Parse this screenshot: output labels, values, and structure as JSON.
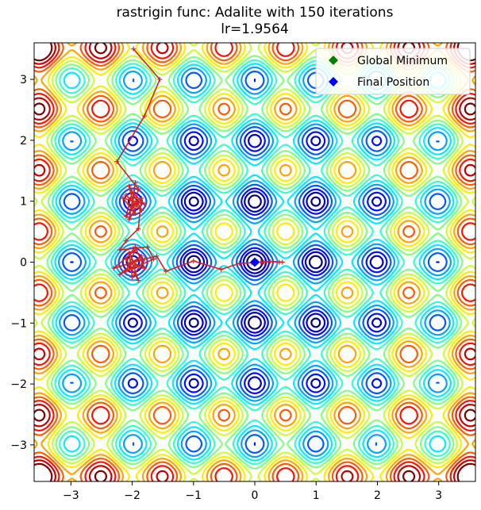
{
  "chart_data": {
    "type": "contour",
    "title": "rastrigin func: Adalite with 150 iterations",
    "subtitle": "lr=1.9564",
    "xlabel": "",
    "ylabel": "",
    "xlim": [
      -3.6,
      3.6
    ],
    "ylim": [
      -3.6,
      3.6
    ],
    "x_ticks": [
      -3,
      -2,
      -1,
      0,
      1,
      2,
      3
    ],
    "y_ticks": [
      -3,
      -2,
      -1,
      0,
      1,
      2,
      3
    ],
    "x_tick_labels": [
      "−3",
      "−2",
      "−1",
      "0",
      "1",
      "2",
      "3"
    ],
    "y_tick_labels": [
      "−3",
      "−2",
      "−1",
      "0",
      "1",
      "2",
      "3"
    ],
    "grid": false,
    "legend_position": "top-right",
    "function": "rastrigin",
    "contour_levels": [
      3,
      6,
      9,
      13,
      17,
      21,
      25,
      29,
      33,
      37,
      41,
      45,
      49,
      53,
      57
    ],
    "colormap": [
      "#00007f",
      "#0000ff",
      "#0080ff",
      "#00ffff",
      "#80ff80",
      "#ffff00",
      "#ff8000",
      "#ff0000",
      "#7f0000"
    ],
    "series": [
      {
        "name": "path",
        "color": "#d62222",
        "x": [
          -1.98,
          -1.55,
          -1.8,
          -2.25,
          -1.9,
          -1.95,
          -2.1,
          -1.85,
          -2.05,
          -1.95,
          -2.15,
          -1.8,
          -2.0,
          -2.1,
          -1.9,
          -2.0,
          -1.95,
          -2.05,
          -1.85,
          -1.9,
          -2.1,
          -2.2,
          -1.75,
          -1.65,
          -2.1,
          -1.95,
          -2.3,
          -1.8,
          -2.0,
          -2.05,
          -1.95,
          -2.2,
          -1.85,
          -2.0,
          -1.9,
          -2.1,
          -1.95,
          -1.8,
          -2.0,
          -1.6,
          -1.45,
          -1.0,
          -0.55,
          -0.25,
          -0.05,
          0.1,
          0.25,
          0.4,
          0.45,
          0.3,
          0.15,
          0.05,
          0.0
        ],
        "y": [
          3.5,
          3.0,
          2.4,
          1.65,
          1.2,
          0.95,
          1.1,
          0.85,
          1.25,
          0.8,
          1.05,
          0.95,
          1.15,
          0.75,
          1.0,
          0.9,
          1.3,
          0.7,
          1.05,
          0.55,
          0.35,
          0.2,
          0.25,
          0.05,
          -0.15,
          0.2,
          -0.1,
          0.05,
          -0.25,
          0.15,
          -0.05,
          -0.2,
          0.1,
          0.0,
          -0.3,
          0.05,
          0.25,
          -0.1,
          0.0,
          0.1,
          -0.15,
          0.02,
          -0.12,
          -0.02,
          -0.01,
          0.0,
          0.01,
          0.0,
          0.0,
          0.01,
          0.0,
          0.0,
          0.0
        ]
      }
    ],
    "markers": [
      {
        "name": "Global Minimum",
        "x": 0,
        "y": 0,
        "color": "#008000"
      },
      {
        "name": "Final Position",
        "x": 0.0,
        "y": 0.0,
        "color": "#0000ff"
      }
    ]
  }
}
